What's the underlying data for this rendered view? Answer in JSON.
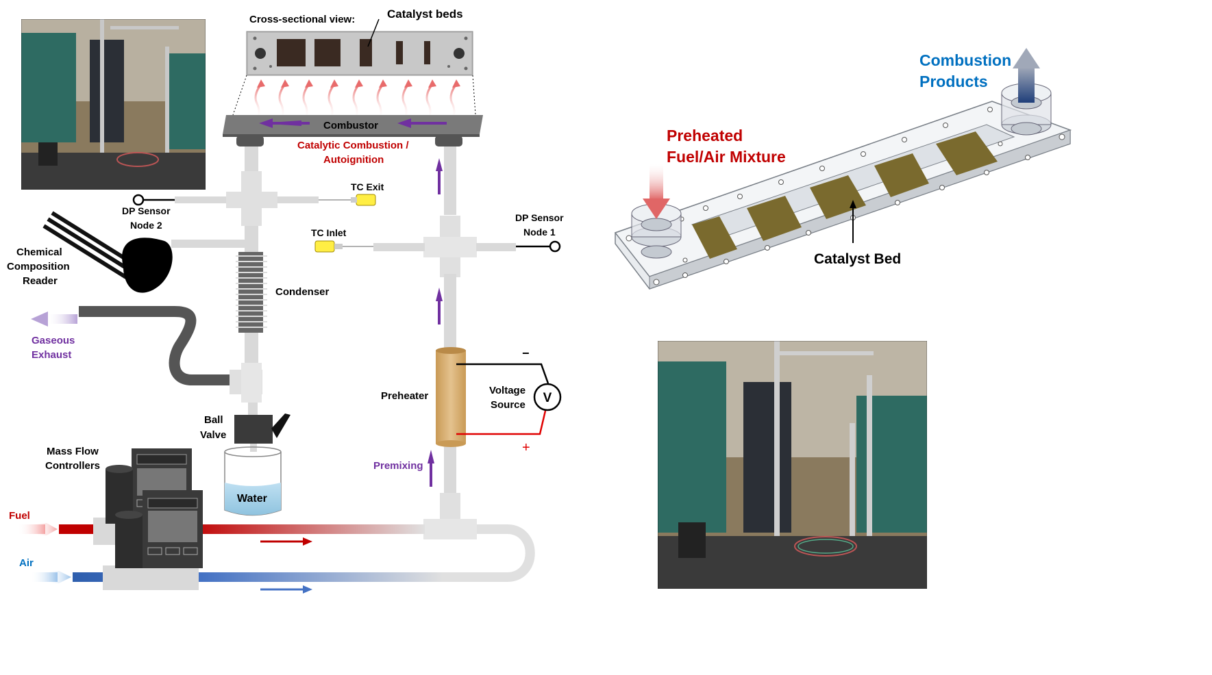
{
  "labels": {
    "cross_sectional_view": "Cross-sectional view:",
    "catalyst_beds": "Catalyst beds",
    "combustor": "Combustor",
    "catalytic_combustion_1": "Catalytic Combustion /",
    "catalytic_combustion_2": "Autoignition",
    "tc_exit": "TC Exit",
    "tc_inlet": "TC Inlet",
    "dp_node2_1": "DP Sensor",
    "dp_node2_2": "Node 2",
    "dp_node1_1": "DP Sensor",
    "dp_node1_2": "Node 1",
    "chem_1": "Chemical",
    "chem_2": "Composition",
    "chem_3": "Reader",
    "condenser": "Condenser",
    "gaseous_1": "Gaseous",
    "gaseous_2": "Exhaust",
    "preheater": "Preheater",
    "voltage_1": "Voltage",
    "voltage_2": "Source",
    "volt_symbol": "V",
    "minus": "−",
    "plus": "+",
    "ball_1": "Ball",
    "ball_2": "Valve",
    "water": "Water",
    "mfc_1": "Mass Flow",
    "mfc_2": "Controllers",
    "fuel": "Fuel",
    "air": "Air",
    "premixing": "Premixing",
    "combustion_products_1": "Combustion",
    "combustion_products_2": "Products",
    "preheated_1": "Preheated",
    "preheated_2": "Fuel/Air Mixture",
    "catalyst_bed": "Catalyst Bed"
  },
  "colors": {
    "red_label": "#c00000",
    "purple_label": "#7030a0",
    "blue_label": "#0070c0",
    "pipe": "#d9d9d9",
    "catalyst": "#7a6a2e",
    "heater": "#dcb57a"
  }
}
